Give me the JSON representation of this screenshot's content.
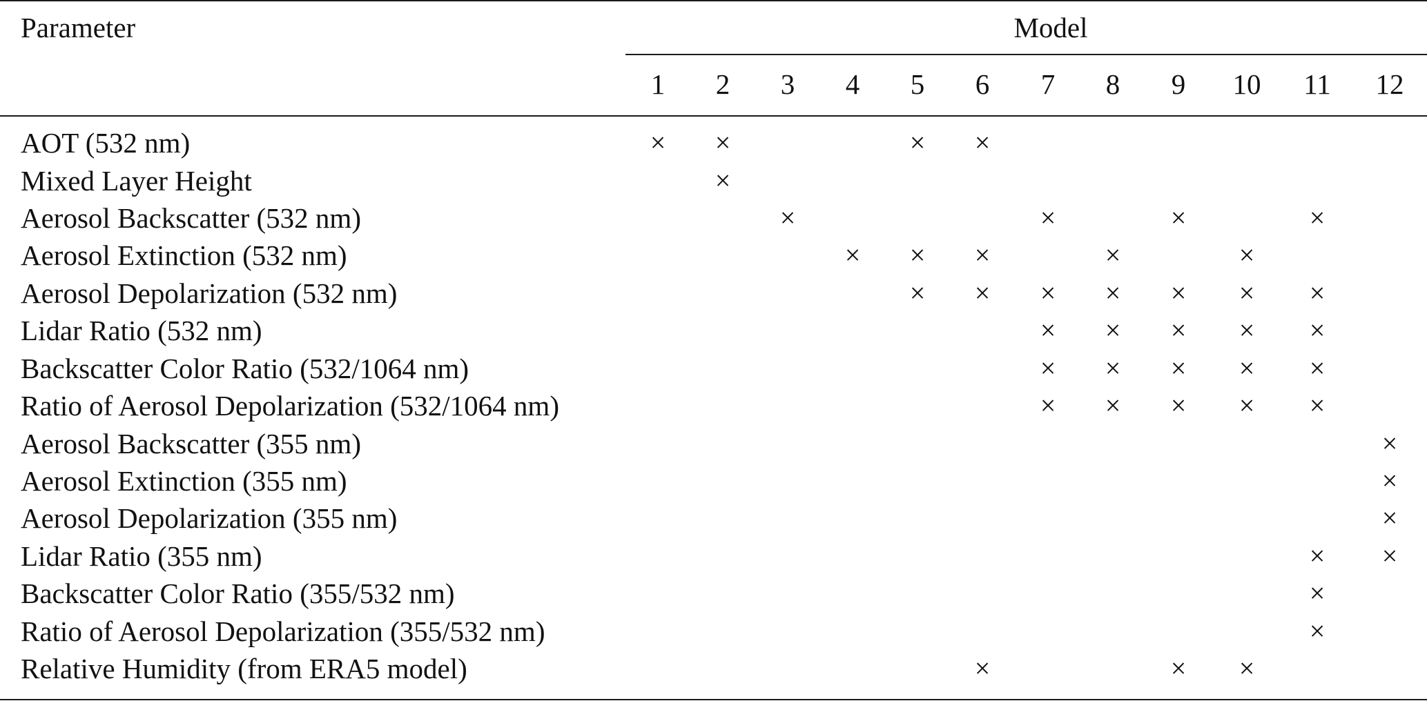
{
  "table": {
    "header": {
      "parameter_label": "Parameter",
      "model_label": "Model",
      "model_columns": [
        "1",
        "2",
        "3",
        "4",
        "5",
        "6",
        "7",
        "8",
        "9",
        "10",
        "11",
        "12"
      ]
    },
    "mark_symbol": "×",
    "rows": [
      {
        "parameter": "AOT (532 nm)",
        "models": [
          1,
          2,
          5,
          6
        ]
      },
      {
        "parameter": "Mixed Layer Height",
        "models": [
          2
        ]
      },
      {
        "parameter": "Aerosol Backscatter (532 nm)",
        "models": [
          3,
          7,
          9,
          11
        ]
      },
      {
        "parameter": "Aerosol Extinction (532 nm)",
        "models": [
          4,
          5,
          6,
          8,
          10
        ]
      },
      {
        "parameter": "Aerosol Depolarization (532 nm)",
        "models": [
          5,
          6,
          7,
          8,
          9,
          10,
          11
        ]
      },
      {
        "parameter": "Lidar Ratio (532 nm)",
        "models": [
          7,
          8,
          9,
          10,
          11
        ]
      },
      {
        "parameter": "Backscatter Color Ratio (532/1064 nm)",
        "models": [
          7,
          8,
          9,
          10,
          11
        ]
      },
      {
        "parameter": "Ratio of Aerosol Depolarization (532/1064 nm)",
        "models": [
          7,
          8,
          9,
          10,
          11
        ]
      },
      {
        "parameter": "Aerosol Backscatter (355 nm)",
        "models": [
          12
        ]
      },
      {
        "parameter": "Aerosol Extinction (355 nm)",
        "models": [
          12
        ]
      },
      {
        "parameter": "Aerosol Depolarization (355 nm)",
        "models": [
          12
        ]
      },
      {
        "parameter": "Lidar Ratio (355 nm)",
        "models": [
          11,
          12
        ]
      },
      {
        "parameter": "Backscatter Color Ratio (355/532 nm)",
        "models": [
          11
        ]
      },
      {
        "parameter": "Ratio of Aerosol Depolarization (355/532 nm)",
        "models": [
          11
        ]
      },
      {
        "parameter": "Relative Humidity (from ERA5 model)",
        "models": [
          6,
          9,
          10
        ]
      }
    ]
  }
}
